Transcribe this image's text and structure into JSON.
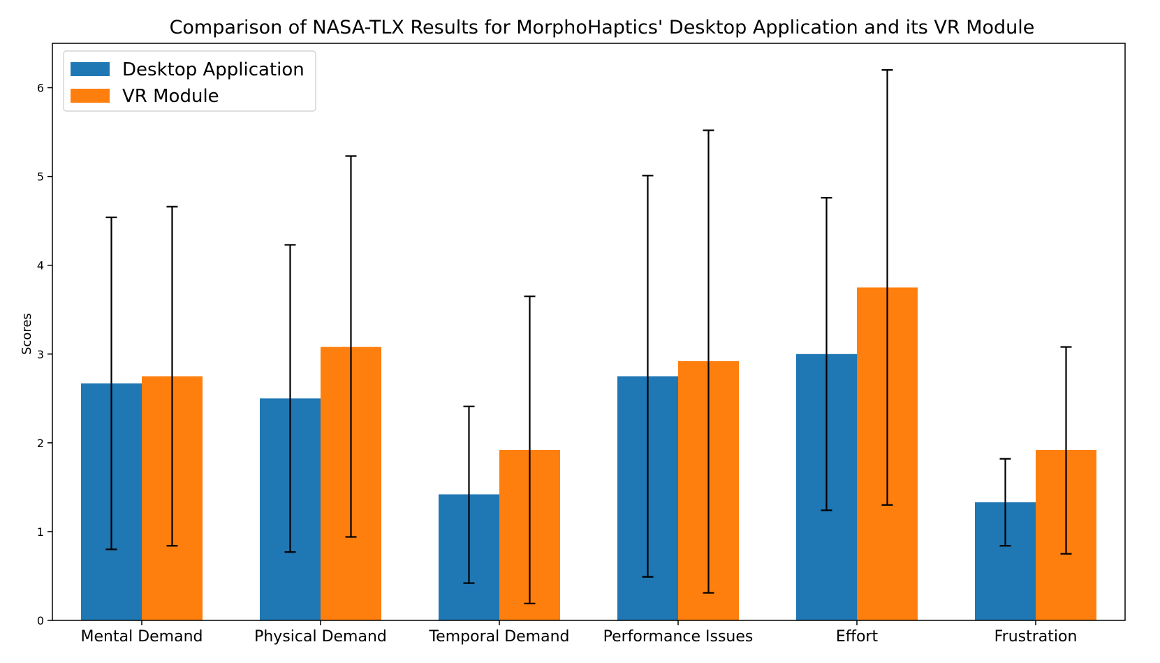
{
  "chart_data": {
    "type": "bar",
    "title": "Comparison of NASA-TLX Results for MorphoHaptics' Desktop Application and its VR Module",
    "xlabel": "",
    "ylabel": "Scores",
    "ylim": [
      0,
      6.5
    ],
    "yticks": [
      0,
      1,
      2,
      3,
      4,
      5,
      6
    ],
    "categories": [
      "Mental Demand",
      "Physical Demand",
      "Temporal Demand",
      "Performance Issues",
      "Effort",
      "Frustration"
    ],
    "series": [
      {
        "name": "Desktop Application",
        "color": "#1f77b4",
        "values": [
          2.67,
          2.5,
          1.42,
          2.75,
          3.0,
          1.33
        ],
        "err_low": [
          0.8,
          0.77,
          0.42,
          0.49,
          1.24,
          0.84
        ],
        "err_high": [
          4.54,
          4.23,
          2.41,
          5.01,
          4.76,
          1.82
        ]
      },
      {
        "name": "VR Module",
        "color": "#ff7f0e",
        "values": [
          2.75,
          3.08,
          1.92,
          2.92,
          3.75,
          1.92
        ],
        "err_low": [
          0.84,
          0.94,
          0.19,
          0.31,
          1.3,
          0.75
        ],
        "err_high": [
          4.66,
          5.23,
          3.65,
          5.52,
          6.2,
          3.08
        ]
      }
    ],
    "legend_position": "top-left",
    "grid": false
  }
}
